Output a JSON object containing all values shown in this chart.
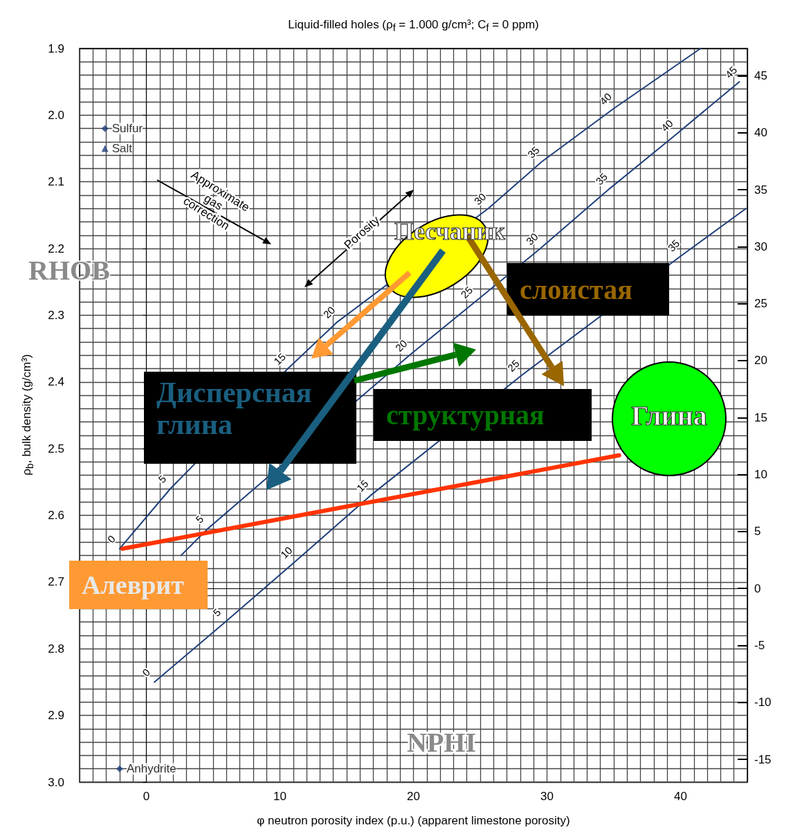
{
  "chart_data": {
    "type": "line",
    "title": "Liquid-filled holes (ρ$_{f}$ = 1.000 g/cm³; C$_{f}$ = 0 ppm)",
    "xlabel": "φ neutron porosity index (p.u.) (apparent limestone porosity)",
    "ylabel": "ρ$_{b}$, bulk density (g/cm³)",
    "xlim": [
      -5,
      45
    ],
    "xticks": [
      0,
      10,
      20,
      30,
      40
    ],
    "ylim": [
      3.0,
      1.9
    ],
    "yticks": [
      1.9,
      {
        "value": 2.0,
        "label": "2.0"
      },
      2.1,
      2.2,
      2.3,
      2.4,
      2.5,
      2.6,
      2.7,
      2.8,
      2.9,
      {
        "value": 3.0,
        "label": "3.0"
      }
    ],
    "y2lim": [
      -17,
      47.4
    ],
    "y2ticks": [
      -15,
      -10,
      -5,
      0,
      5,
      10,
      15,
      20,
      25,
      30,
      35,
      40,
      45
    ],
    "grid": true,
    "legend": false,
    "marker": "none",
    "line_style": "solid",
    "series": [
      {
        "color": "#1f3f7a",
        "x": [
          -2.0,
          1.8,
          10.6,
          14.3,
          25.6,
          29.6,
          35.0,
          41.5
        ],
        "values": [
          2.65,
          2.56,
          2.38,
          2.31,
          2.14,
          2.07,
          1.99,
          1.9
        ]
      },
      {
        "color": "#1f3f7a",
        "x": [
          2.6,
          4.6,
          19.7,
          24.6,
          29.5,
          34.7,
          39.6,
          44.4
        ],
        "values": [
          2.66,
          2.62,
          2.36,
          2.28,
          2.2,
          2.11,
          2.03,
          1.95
        ]
      },
      {
        "color": "#1f3f7a",
        "x": [
          0.6,
          5.9,
          11.1,
          16.8,
          28.1,
          40.1,
          44.9
        ],
        "values": [
          2.85,
          2.76,
          2.67,
          2.57,
          2.39,
          2.21,
          2.14
        ]
      },
      {
        "color": "#ff3300",
        "x": [
          -1.8,
          35.4
        ],
        "values": [
          2.65,
          2.51
        ]
      },
      {
        "type": "scatter",
        "name": "Sulfur",
        "marker": "diamond",
        "color": "#1f3f7a",
        "x": [
          -3.1
        ],
        "values": [
          2.02
        ]
      },
      {
        "type": "scatter",
        "name": "Salt",
        "marker": "triangle",
        "color": "#1f3f7a",
        "x": [
          -3.1
        ],
        "values": [
          2.05
        ]
      },
      {
        "type": "scatter",
        "name": "Anhydrite",
        "marker": "diamond",
        "color": "#1f3f7a",
        "x": [
          -2.0
        ],
        "values": [
          2.98
        ]
      }
    ],
    "annotations": [
      "Approximate gas correction",
      "Porosity",
      "RHOB",
      "NPHI",
      "Песчаник",
      "слоистая",
      "Дисперсная глина",
      "структурная",
      "Глина",
      "Алеврит",
      {
        "text": "0",
        "x": -2.0,
        "y": 2.65
      },
      {
        "text": "5",
        "x": 1.8,
        "y": 2.56
      },
      {
        "text": "15",
        "x": 10.6,
        "y": 2.38
      },
      {
        "text": "20",
        "x": 14.3,
        "y": 2.31
      },
      {
        "text": "30",
        "x": 25.6,
        "y": 2.14
      },
      {
        "text": "35",
        "x": 29.6,
        "y": 2.07
      },
      {
        "text": "40",
        "x": 35.0,
        "y": 1.99
      },
      {
        "text": "5",
        "x": 4.6,
        "y": 2.62
      },
      {
        "text": "20",
        "x": 19.7,
        "y": 2.36
      },
      {
        "text": "25",
        "x": 24.6,
        "y": 2.28
      },
      {
        "text": "30",
        "x": 29.5,
        "y": 2.2
      },
      {
        "text": "35",
        "x": 34.7,
        "y": 2.11
      },
      {
        "text": "40",
        "x": 39.6,
        "y": 2.03
      },
      {
        "text": "45",
        "x": 44.4,
        "y": 1.95
      },
      {
        "text": "0",
        "x": 0.6,
        "y": 2.85
      },
      {
        "text": "5",
        "x": 5.9,
        "y": 2.76
      },
      {
        "text": "10",
        "x": 11.1,
        "y": 2.67
      },
      {
        "text": "15",
        "x": 16.8,
        "y": 2.57
      },
      {
        "text": "25",
        "x": 28.1,
        "y": 2.39
      },
      {
        "text": "35",
        "x": 40.1,
        "y": 2.21
      }
    ]
  }
}
